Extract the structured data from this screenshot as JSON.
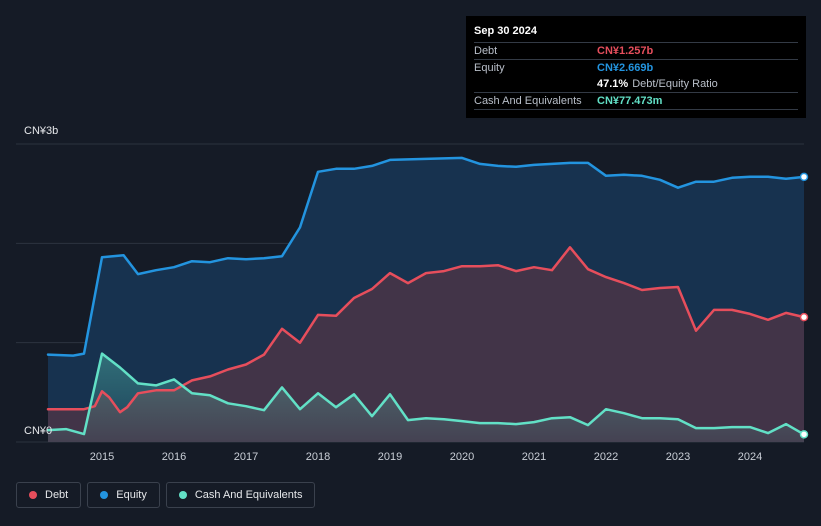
{
  "chart_data": {
    "type": "area",
    "ylabel_top": "CN¥3b",
    "ylabel_bottom": "CN¥0",
    "ylim": [
      0,
      3000
    ],
    "xlim": [
      2014.25,
      2024.75
    ],
    "x_ticks": [
      "2015",
      "2016",
      "2017",
      "2018",
      "2019",
      "2020",
      "2021",
      "2022",
      "2023",
      "2024"
    ],
    "series": [
      {
        "name": "Debt",
        "color": "#e64e5c",
        "points": [
          [
            2014.25,
            330
          ],
          [
            2014.6,
            330
          ],
          [
            2014.75,
            330
          ],
          [
            2014.9,
            360
          ],
          [
            2015.0,
            510
          ],
          [
            2015.1,
            450
          ],
          [
            2015.25,
            300
          ],
          [
            2015.35,
            350
          ],
          [
            2015.5,
            490
          ],
          [
            2015.75,
            520
          ],
          [
            2016.0,
            520
          ],
          [
            2016.25,
            620
          ],
          [
            2016.5,
            660
          ],
          [
            2016.75,
            730
          ],
          [
            2017.0,
            780
          ],
          [
            2017.25,
            880
          ],
          [
            2017.5,
            1140
          ],
          [
            2017.75,
            1000
          ],
          [
            2018.0,
            1280
          ],
          [
            2018.25,
            1270
          ],
          [
            2018.5,
            1450
          ],
          [
            2018.75,
            1540
          ],
          [
            2019.0,
            1700
          ],
          [
            2019.25,
            1600
          ],
          [
            2019.5,
            1700
          ],
          [
            2019.75,
            1720
          ],
          [
            2020.0,
            1770
          ],
          [
            2020.25,
            1770
          ],
          [
            2020.5,
            1780
          ],
          [
            2020.75,
            1720
          ],
          [
            2021.0,
            1760
          ],
          [
            2021.25,
            1730
          ],
          [
            2021.5,
            1960
          ],
          [
            2021.75,
            1740
          ],
          [
            2022.0,
            1660
          ],
          [
            2022.25,
            1600
          ],
          [
            2022.5,
            1530
          ],
          [
            2022.75,
            1550
          ],
          [
            2023.0,
            1560
          ],
          [
            2023.25,
            1120
          ],
          [
            2023.5,
            1330
          ],
          [
            2023.75,
            1330
          ],
          [
            2024.0,
            1290
          ],
          [
            2024.25,
            1230
          ],
          [
            2024.5,
            1300
          ],
          [
            2024.75,
            1257
          ]
        ]
      },
      {
        "name": "Equity",
        "color": "#2394df",
        "points": [
          [
            2014.25,
            880
          ],
          [
            2014.6,
            870
          ],
          [
            2014.75,
            890
          ],
          [
            2015.0,
            1860
          ],
          [
            2015.3,
            1880
          ],
          [
            2015.5,
            1690
          ],
          [
            2015.75,
            1730
          ],
          [
            2016.0,
            1760
          ],
          [
            2016.25,
            1820
          ],
          [
            2016.5,
            1810
          ],
          [
            2016.75,
            1850
          ],
          [
            2017.0,
            1840
          ],
          [
            2017.25,
            1850
          ],
          [
            2017.5,
            1870
          ],
          [
            2017.75,
            2160
          ],
          [
            2018.0,
            2720
          ],
          [
            2018.25,
            2750
          ],
          [
            2018.5,
            2750
          ],
          [
            2018.75,
            2780
          ],
          [
            2019.0,
            2840
          ],
          [
            2019.5,
            2850
          ],
          [
            2020.0,
            2860
          ],
          [
            2020.25,
            2800
          ],
          [
            2020.5,
            2780
          ],
          [
            2020.75,
            2770
          ],
          [
            2021.0,
            2790
          ],
          [
            2021.25,
            2800
          ],
          [
            2021.5,
            2810
          ],
          [
            2021.75,
            2810
          ],
          [
            2022.0,
            2680
          ],
          [
            2022.25,
            2690
          ],
          [
            2022.5,
            2680
          ],
          [
            2022.75,
            2640
          ],
          [
            2023.0,
            2560
          ],
          [
            2023.25,
            2620
          ],
          [
            2023.5,
            2620
          ],
          [
            2023.75,
            2660
          ],
          [
            2024.0,
            2670
          ],
          [
            2024.25,
            2670
          ],
          [
            2024.5,
            2650
          ],
          [
            2024.75,
            2669
          ]
        ]
      },
      {
        "name": "Cash And Equivalents",
        "color": "#62e0c6",
        "points": [
          [
            2014.25,
            120
          ],
          [
            2014.5,
            130
          ],
          [
            2014.75,
            80
          ],
          [
            2015.0,
            890
          ],
          [
            2015.25,
            750
          ],
          [
            2015.5,
            590
          ],
          [
            2015.75,
            570
          ],
          [
            2016.0,
            630
          ],
          [
            2016.25,
            490
          ],
          [
            2016.5,
            470
          ],
          [
            2016.75,
            390
          ],
          [
            2017.0,
            360
          ],
          [
            2017.25,
            320
          ],
          [
            2017.5,
            550
          ],
          [
            2017.75,
            330
          ],
          [
            2018.0,
            490
          ],
          [
            2018.25,
            350
          ],
          [
            2018.5,
            480
          ],
          [
            2018.75,
            260
          ],
          [
            2019.0,
            480
          ],
          [
            2019.25,
            220
          ],
          [
            2019.5,
            240
          ],
          [
            2019.75,
            230
          ],
          [
            2020.0,
            210
          ],
          [
            2020.25,
            190
          ],
          [
            2020.5,
            190
          ],
          [
            2020.75,
            180
          ],
          [
            2021.0,
            200
          ],
          [
            2021.25,
            240
          ],
          [
            2021.5,
            250
          ],
          [
            2021.75,
            170
          ],
          [
            2022.0,
            330
          ],
          [
            2022.25,
            290
          ],
          [
            2022.5,
            240
          ],
          [
            2022.75,
            240
          ],
          [
            2023.0,
            230
          ],
          [
            2023.25,
            140
          ],
          [
            2023.5,
            140
          ],
          [
            2023.75,
            150
          ],
          [
            2024.0,
            150
          ],
          [
            2024.25,
            90
          ],
          [
            2024.5,
            180
          ],
          [
            2024.75,
            77
          ]
        ]
      }
    ],
    "grid": true,
    "legend_position": "bottom-left"
  },
  "tooltip": {
    "date": "Sep 30 2024",
    "debt_label": "Debt",
    "debt_value": "CN¥1.257b",
    "equity_label": "Equity",
    "equity_value": "CN¥2.669b",
    "ratio_value": "47.1%",
    "ratio_label": "Debt/Equity Ratio",
    "cash_label": "Cash And Equivalents",
    "cash_value": "CN¥77.473m"
  },
  "legend": {
    "debt": "Debt",
    "equity": "Equity",
    "cash": "Cash And Equivalents"
  },
  "colors": {
    "debt": "#e64e5c",
    "equity": "#2394df",
    "cash": "#62e0c6",
    "background": "#151b26"
  }
}
